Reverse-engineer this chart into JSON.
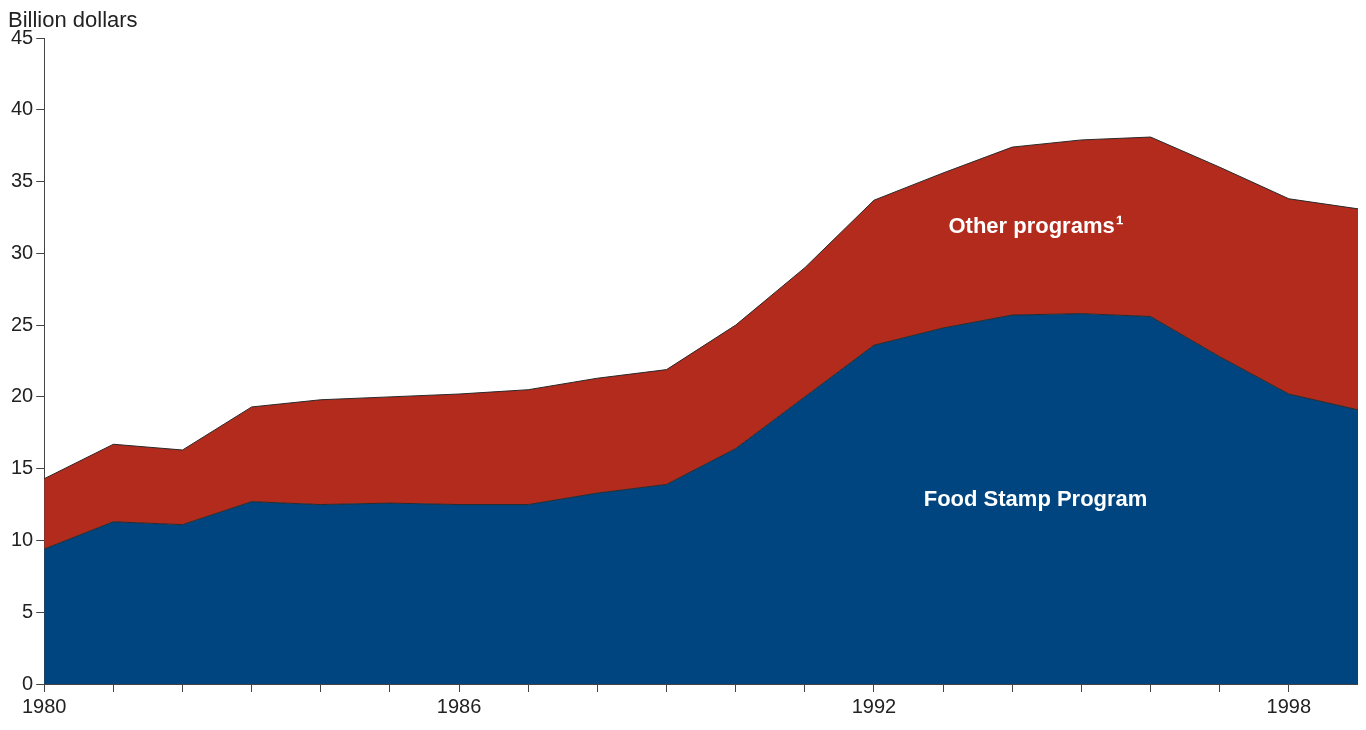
{
  "chart_data": {
    "type": "area",
    "stacked": true,
    "ylabel": "Billion dollars",
    "x": [
      1980,
      1981,
      1982,
      1983,
      1984,
      1985,
      1986,
      1987,
      1988,
      1989,
      1990,
      1991,
      1992,
      1993,
      1994,
      1995,
      1996,
      1997,
      1998,
      1999
    ],
    "series": [
      {
        "name": "Food Stamp Program",
        "color": "#00457f",
        "values": [
          9.4,
          11.3,
          11.1,
          12.7,
          12.5,
          12.6,
          12.5,
          12.5,
          13.3,
          13.9,
          16.4,
          20.0,
          23.6,
          24.8,
          25.7,
          25.8,
          25.6,
          22.8,
          20.2,
          19.1
        ]
      },
      {
        "name": "Other programs¹",
        "color": "#b22b1d",
        "values": [
          4.9,
          5.4,
          5.2,
          6.6,
          7.3,
          7.4,
          7.7,
          8.0,
          8.0,
          8.0,
          8.6,
          9.0,
          10.1,
          10.8,
          11.7,
          12.1,
          12.5,
          13.2,
          13.6,
          14.0
        ]
      }
    ],
    "xlim": [
      1980,
      1999
    ],
    "xticks": [
      1980,
      {
        "value": 1981,
        "label": null
      },
      {
        "value": 1982,
        "label": null
      },
      {
        "value": 1983,
        "label": null
      },
      {
        "value": 1984,
        "label": null
      },
      {
        "value": 1985,
        "label": null
      },
      1986,
      {
        "value": 1987,
        "label": null
      },
      {
        "value": 1988,
        "label": null
      },
      {
        "value": 1989,
        "label": null
      },
      {
        "value": 1990,
        "label": null
      },
      {
        "value": 1991,
        "label": null
      },
      1992,
      {
        "value": 1993,
        "label": null
      },
      {
        "value": 1994,
        "label": null
      },
      {
        "value": 1995,
        "label": null
      },
      {
        "value": 1996,
        "label": null
      },
      {
        "value": 1997,
        "label": null
      },
      1998
    ],
    "ylim": [
      0,
      45
    ],
    "yticks": [
      0,
      5,
      10,
      15,
      20,
      25,
      30,
      35,
      40,
      45
    ],
    "grid": false,
    "legend": false
  }
}
